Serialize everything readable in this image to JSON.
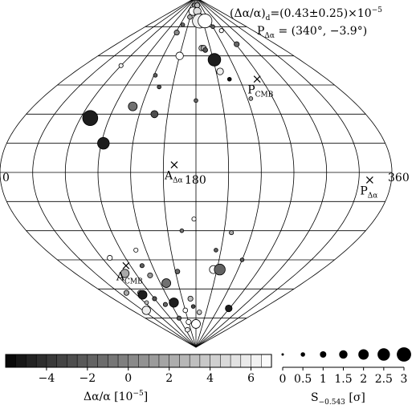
{
  "header": {
    "dipole_amplitude": "(Δα/α)",
    "dipole_amplitude_sub": "d",
    "dipole_amplitude_value": "=(0.43±0.25)×10",
    "dipole_amplitude_exp": "−5",
    "pole_label": "P",
    "pole_sub": "Δα",
    "pole_value": " = (340°,  −3.9°)"
  },
  "map": {
    "lon_left_label": "0",
    "lon_center_label": "180",
    "lon_right_label": "360",
    "markers": [
      {
        "name": "pole-dipole",
        "label": "P",
        "sub": "Δα",
        "lon": 340,
        "lat": -3.9
      },
      {
        "name": "antipole-dipole",
        "label": "A",
        "sub": "Δα",
        "lon": 160,
        "lat": 3.9
      },
      {
        "name": "pole-cmb",
        "label": "P",
        "sub": "CMB",
        "lon": 264,
        "lat": 48
      },
      {
        "name": "antipole-cmb",
        "label": "A",
        "sub": "CMB",
        "lon": 84,
        "lat": -48
      }
    ]
  },
  "points": [
    {
      "lon": 163,
      "lat": 86,
      "v": 0.5,
      "s": 0.5
    },
    {
      "lon": 198,
      "lat": 86,
      "v": 3,
      "s": 0.6
    },
    {
      "lon": 158,
      "lat": 83,
      "v": 7,
      "s": 1.4
    },
    {
      "lon": 190,
      "lat": 83,
      "v": 5,
      "s": 1.2
    },
    {
      "lon": 148,
      "lat": 80,
      "v": 2,
      "s": 0.5
    },
    {
      "lon": 196,
      "lat": 78,
      "v": 6,
      "s": 2.8
    },
    {
      "lon": 220,
      "lat": 78,
      "v": 7,
      "s": 2.7
    },
    {
      "lon": 130,
      "lat": 76,
      "v": -1.5,
      "s": 0.3
    },
    {
      "lon": 123,
      "lat": 72,
      "v": 0.3,
      "s": 0.6
    },
    {
      "lon": 240,
      "lat": 75,
      "v": -1.8,
      "s": 0.3
    },
    {
      "lon": 260,
      "lat": 73,
      "v": 7,
      "s": 0.4
    },
    {
      "lon": 272,
      "lat": 66,
      "v": -1.5,
      "s": 0.6
    },
    {
      "lon": 192,
      "lat": 64,
      "v": 5,
      "s": 0.7
    },
    {
      "lon": 196,
      "lat": 64,
      "v": 2,
      "s": 0.7
    },
    {
      "lon": 199,
      "lat": 63,
      "v": -2.5,
      "s": 0.5
    },
    {
      "lon": 150,
      "lat": 60,
      "v": 7,
      "s": 1.2
    },
    {
      "lon": 212,
      "lat": 58,
      "v": -5,
      "s": 2.4
    },
    {
      "lon": 216,
      "lat": 52,
      "v": 6,
      "s": 1.0
    },
    {
      "lon": 60,
      "lat": 55,
      "v": 6,
      "s": 0.4
    },
    {
      "lon": 122,
      "lat": 50,
      "v": -2,
      "s": 0.3
    },
    {
      "lon": 226,
      "lat": 48,
      "v": -5.5,
      "s": 0.3
    },
    {
      "lon": 133,
      "lat": 44,
      "v": -2.5,
      "s": 0.3
    },
    {
      "lon": 244,
      "lat": 38,
      "v": 2,
      "s": 0.3
    },
    {
      "lon": 110,
      "lat": 34,
      "v": -1,
      "s": 1.5
    },
    {
      "lon": 180,
      "lat": 37,
      "v": -1.5,
      "s": 0.3
    },
    {
      "lon": 70,
      "lat": 28,
      "v": -5,
      "s": 3.0
    },
    {
      "lon": 136,
      "lat": 30,
      "v": -2.8,
      "s": 1.1
    },
    {
      "lon": 92,
      "lat": 15,
      "v": -5,
      "s": 2.2
    },
    {
      "lon": 178,
      "lat": -24,
      "v": 7,
      "s": 0.4
    },
    {
      "lon": 165,
      "lat": -30,
      "v": -1,
      "s": 0.3
    },
    {
      "lon": 218,
      "lat": -31,
      "v": 2,
      "s": 0.4
    },
    {
      "lon": 204,
      "lat": -40,
      "v": -2,
      "s": 0.3
    },
    {
      "lon": 108,
      "lat": -40,
      "v": 7,
      "s": 0.4
    },
    {
      "lon": 240,
      "lat": -45,
      "v": -2.2,
      "s": 0.3
    },
    {
      "lon": 70,
      "lat": -44,
      "v": 7,
      "s": 0.6
    },
    {
      "lon": 106,
      "lat": -48,
      "v": -2,
      "s": 0.4
    },
    {
      "lon": 205,
      "lat": -50,
      "v": 7,
      "s": 1.3
    },
    {
      "lon": 214,
      "lat": -50,
      "v": -1.8,
      "s": 2.0
    },
    {
      "lon": 74,
      "lat": -52,
      "v": 2,
      "s": 1.4
    },
    {
      "lon": 110,
      "lat": -53,
      "v": 1,
      "s": 0.6
    },
    {
      "lon": 153,
      "lat": -51,
      "v": -1.5,
      "s": 0.5
    },
    {
      "lon": 130,
      "lat": -57,
      "v": -1,
      "s": 1.5
    },
    {
      "lon": 71,
      "lat": -62,
      "v": 5,
      "s": 0.6
    },
    {
      "lon": 72,
      "lat": -63,
      "v": -5,
      "s": 1.5
    },
    {
      "lon": 44,
      "lat": -62,
      "v": 2,
      "s": 0.6
    },
    {
      "lon": 90,
      "lat": -65,
      "v": -2.5,
      "s": 0.4
    },
    {
      "lon": 64,
      "lat": -67,
      "v": 3,
      "s": 0.3
    },
    {
      "lon": 128,
      "lat": -67,
      "v": -5,
      "s": 1.6
    },
    {
      "lon": 168,
      "lat": -65,
      "v": 3,
      "s": 0.6
    },
    {
      "lon": 105,
      "lat": -68,
      "v": -1.5,
      "s": 0.4
    },
    {
      "lon": 173,
      "lat": -69,
      "v": -3,
      "s": 0.3
    },
    {
      "lon": 268,
      "lat": -70,
      "v": -5,
      "s": 1.0
    },
    {
      "lon": 40,
      "lat": -71,
      "v": 6,
      "s": 1.4
    },
    {
      "lon": 150,
      "lat": -71,
      "v": 7,
      "s": 0.5
    },
    {
      "lon": 190,
      "lat": -72,
      "v": 4,
      "s": 0.5
    },
    {
      "lon": 120,
      "lat": -75,
      "v": -2,
      "s": 0.4
    },
    {
      "lon": 150,
      "lat": -77,
      "v": 7,
      "s": 0.6
    },
    {
      "lon": 180,
      "lat": -78,
      "v": 7,
      "s": 1.5
    },
    {
      "lon": 130,
      "lat": -81,
      "v": 6,
      "s": 0.5
    }
  ],
  "colorbar": {
    "ticks": [
      "−4",
      "−2",
      "0",
      "2",
      "4",
      "6"
    ],
    "tick_values": [
      -4,
      -2,
      0,
      2,
      4,
      6
    ],
    "range": [
      -6,
      7
    ],
    "label": "Δα/α  [10",
    "label_exp": "−5",
    "label_end": "]"
  },
  "sizebar": {
    "ticks": [
      "0",
      "0.5",
      "1",
      "1.5",
      "2",
      "2.5",
      "3"
    ],
    "tick_values": [
      0,
      0.5,
      1,
      1.5,
      2,
      2.5,
      3
    ],
    "label": "S",
    "label_sub": "−0.543",
    "label_unit": "  [σ]"
  }
}
